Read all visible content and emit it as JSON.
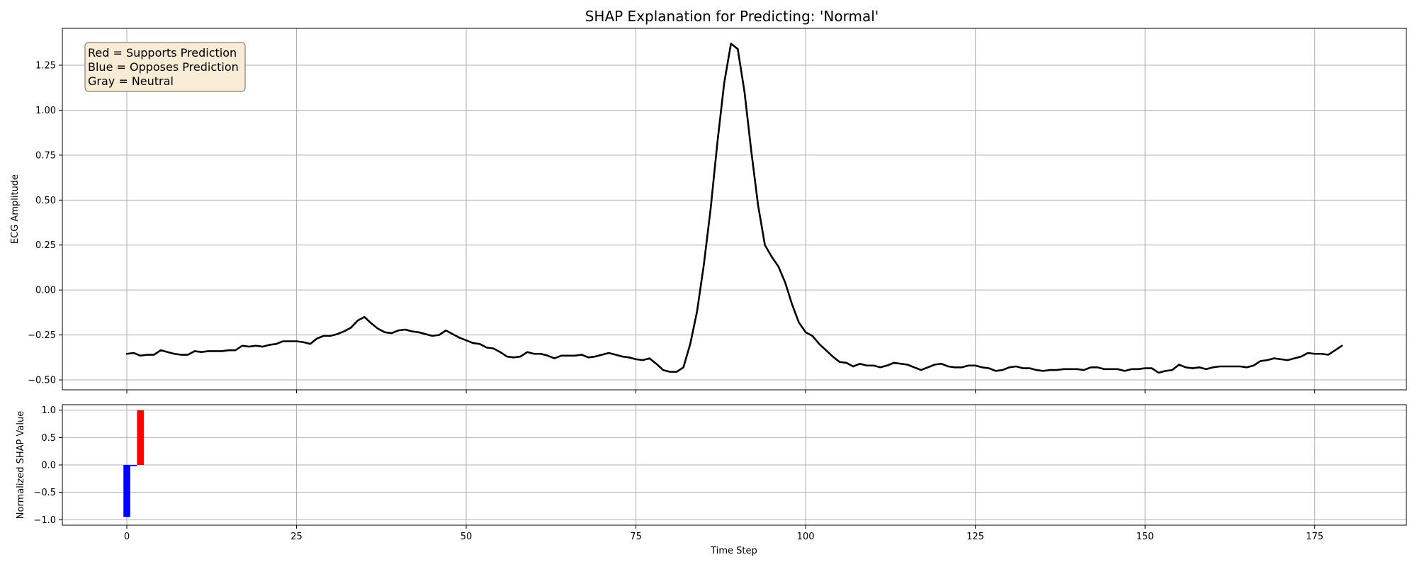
{
  "chart_data": {
    "type": "line",
    "title": "SHAP Explanation for Predicting: 'Normal'",
    "legend_box": {
      "placement": "top-left",
      "lines": [
        "Red = Supports Prediction",
        "Blue = Opposes Prediction",
        "Gray = Neutral"
      ]
    },
    "colors": {
      "signal": "#000000",
      "supports": "#ff0000",
      "opposes": "#0000ff",
      "neutral": "#808080",
      "legend_bg": "#f9ecd6",
      "legend_border": "#8c7f70",
      "grid": "#b0b0b0"
    },
    "xlabel": "Time Step",
    "xlim": [
      -9.5,
      188.5
    ],
    "xticks": [
      0,
      25,
      50,
      75,
      100,
      125,
      150,
      175
    ],
    "grid": true,
    "top_panel": {
      "ylabel": "ECG Amplitude",
      "ylim": [
        -0.555,
        1.455
      ],
      "yticks": [
        -0.5,
        -0.25,
        0.0,
        0.25,
        0.5,
        0.75,
        1.0,
        1.25
      ],
      "ytick_labels": [
        "−0.50",
        "−0.25",
        "0.00",
        "0.25",
        "0.50",
        "0.75",
        "1.00",
        "1.25"
      ],
      "series": [
        {
          "values": [
            -0.355,
            -0.35,
            -0.365,
            -0.36,
            -0.36,
            -0.335,
            -0.345,
            -0.355,
            -0.36,
            -0.36,
            -0.34,
            -0.345,
            -0.34,
            -0.34,
            -0.34,
            -0.335,
            -0.335,
            -0.31,
            -0.315,
            -0.31,
            -0.315,
            -0.305,
            -0.3,
            -0.285,
            -0.285,
            -0.285,
            -0.29,
            -0.3,
            -0.27,
            -0.255,
            -0.255,
            -0.245,
            -0.23,
            -0.21,
            -0.17,
            -0.15,
            -0.185,
            -0.215,
            -0.235,
            -0.24,
            -0.225,
            -0.22,
            -0.23,
            -0.235,
            -0.245,
            -0.255,
            -0.25,
            -0.225,
            -0.245,
            -0.265,
            -0.28,
            -0.295,
            -0.3,
            -0.32,
            -0.325,
            -0.345,
            -0.37,
            -0.375,
            -0.37,
            -0.345,
            -0.355,
            -0.355,
            -0.365,
            -0.38,
            -0.365,
            -0.365,
            -0.365,
            -0.36,
            -0.375,
            -0.37,
            -0.36,
            -0.35,
            -0.36,
            -0.37,
            -0.375,
            -0.385,
            -0.39,
            -0.38,
            -0.41,
            -0.445,
            -0.455,
            -0.455,
            -0.43,
            -0.3,
            -0.12,
            0.14,
            0.45,
            0.82,
            1.15,
            1.37,
            1.34,
            1.1,
            0.77,
            0.47,
            0.25,
            0.185,
            0.13,
            0.04,
            -0.08,
            -0.18,
            -0.235,
            -0.255,
            -0.3,
            -0.335,
            -0.37,
            -0.4,
            -0.405,
            -0.425,
            -0.41,
            -0.42,
            -0.42,
            -0.43,
            -0.42,
            -0.405,
            -0.41,
            -0.415,
            -0.43,
            -0.445,
            -0.43,
            -0.415,
            -0.41,
            -0.425,
            -0.43,
            -0.43,
            -0.42,
            -0.42,
            -0.43,
            -0.435,
            -0.45,
            -0.445,
            -0.43,
            -0.425,
            -0.435,
            -0.435,
            -0.445,
            -0.45,
            -0.445,
            -0.445,
            -0.44,
            -0.44,
            -0.44,
            -0.445,
            -0.43,
            -0.43,
            -0.44,
            -0.44,
            -0.44,
            -0.45,
            -0.44,
            -0.44,
            -0.435,
            -0.435,
            -0.46,
            -0.45,
            -0.445,
            -0.415,
            -0.43,
            -0.435,
            -0.43,
            -0.44,
            -0.43,
            -0.425,
            -0.425,
            -0.425,
            -0.425,
            -0.43,
            -0.42,
            -0.395,
            -0.39,
            -0.38,
            -0.385,
            -0.39,
            -0.38,
            -0.37,
            -0.35,
            -0.355,
            -0.355,
            -0.36,
            -0.335,
            -0.31
          ]
        }
      ]
    },
    "bottom_panel": {
      "type": "bar",
      "ylabel": "Normalized SHAP Value",
      "ylim": [
        -1.1,
        1.1
      ],
      "yticks": [
        -1.0,
        -0.5,
        0.0,
        0.5,
        1.0
      ],
      "ytick_labels": [
        "−1.0",
        "−0.5",
        "0.0",
        "0.5",
        "1.0"
      ],
      "x": [
        0,
        1,
        2
      ],
      "values": [
        -0.95,
        -0.02,
        1.0
      ],
      "bar_colors": [
        "#0000ff",
        "#0000ff",
        "#ff0000"
      ]
    }
  }
}
